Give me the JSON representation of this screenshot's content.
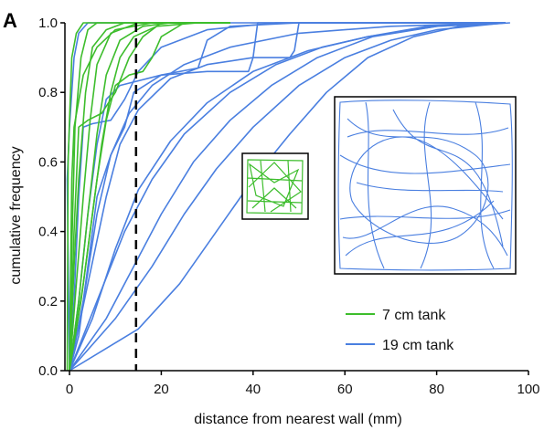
{
  "panel_label": "A",
  "chart_data": {
    "type": "line",
    "xlabel": "distance from nearest wall (mm)",
    "ylabel": "cumulative frequency",
    "xlim": [
      -1,
      100
    ],
    "ylim": [
      0,
      1
    ],
    "x_ticks": [
      0,
      20,
      40,
      60,
      80,
      100
    ],
    "y_ticks": [
      0.0,
      0.2,
      0.4,
      0.6,
      0.8,
      1.0
    ],
    "x_tick_labels": [
      "0",
      "20",
      "40",
      "60",
      "80",
      "100"
    ],
    "y_tick_labels": [
      "0.0",
      "0.2",
      "0.4",
      "0.6",
      "0.8",
      "1.0"
    ],
    "grid": false,
    "legend_position": "bottom-right",
    "threshold_line_x": 14.5,
    "colors": {
      "green": "#3dbd2c",
      "blue": "#4a7fe0"
    },
    "legend": [
      {
        "label": "7 cm tank",
        "color": "#3dbd2c"
      },
      {
        "label": "19 cm tank",
        "color": "#4a7fe0"
      }
    ],
    "series": [
      {
        "group": "green",
        "points": [
          [
            -0.5,
            0
          ],
          [
            -0.3,
            0.6
          ],
          [
            0,
            0.72
          ],
          [
            0.5,
            0.9
          ],
          [
            1.5,
            0.97
          ],
          [
            3,
            1
          ],
          [
            35,
            1
          ]
        ]
      },
      {
        "group": "green",
        "points": [
          [
            0,
            0
          ],
          [
            0.5,
            0.35
          ],
          [
            1.2,
            0.7
          ],
          [
            2.5,
            0.9
          ],
          [
            4,
            0.98
          ],
          [
            6,
            1
          ],
          [
            35,
            1
          ]
        ]
      },
      {
        "group": "green",
        "points": [
          [
            0,
            0
          ],
          [
            1,
            0.3
          ],
          [
            2,
            0.55
          ],
          [
            3.5,
            0.8
          ],
          [
            5,
            0.93
          ],
          [
            8,
            0.98
          ],
          [
            12,
            1
          ],
          [
            35,
            1
          ]
        ]
      },
      {
        "group": "green",
        "points": [
          [
            0,
            0
          ],
          [
            1.5,
            0.25
          ],
          [
            3,
            0.5
          ],
          [
            4.5,
            0.72
          ],
          [
            6,
            0.88
          ],
          [
            9,
            0.97
          ],
          [
            15,
            1
          ],
          [
            35,
            1
          ]
        ]
      },
      {
        "group": "green",
        "points": [
          [
            0,
            0
          ],
          [
            2,
            0.2
          ],
          [
            4,
            0.45
          ],
          [
            6,
            0.68
          ],
          [
            8,
            0.85
          ],
          [
            11,
            0.95
          ],
          [
            16,
            0.99
          ],
          [
            22,
            1
          ],
          [
            35,
            1
          ]
        ]
      },
      {
        "group": "green",
        "points": [
          [
            0,
            0
          ],
          [
            2.5,
            0.2
          ],
          [
            5,
            0.45
          ],
          [
            7,
            0.65
          ],
          [
            9,
            0.8
          ],
          [
            11,
            0.9
          ],
          [
            14,
            0.96
          ],
          [
            19,
            0.99
          ],
          [
            28,
            1
          ],
          [
            35,
            1
          ]
        ]
      },
      {
        "group": "green",
        "points": [
          [
            0,
            0
          ],
          [
            3,
            0.25
          ],
          [
            6,
            0.55
          ],
          [
            8,
            0.72
          ],
          [
            10,
            0.82
          ],
          [
            13,
            0.85
          ],
          [
            16,
            0.86
          ],
          [
            18,
            0.9
          ],
          [
            20,
            0.96
          ],
          [
            25,
            1
          ],
          [
            35,
            1
          ]
        ]
      },
      {
        "group": "green",
        "points": [
          [
            0,
            0
          ],
          [
            1,
            0.4
          ],
          [
            2,
            0.7
          ],
          [
            4,
            0.72
          ],
          [
            7,
            0.74
          ],
          [
            10,
            0.8
          ],
          [
            13,
            0.9
          ],
          [
            16,
            0.96
          ],
          [
            20,
            1
          ],
          [
            35,
            1
          ]
        ]
      },
      {
        "group": "green",
        "points": [
          [
            0,
            0
          ],
          [
            0.5,
            0.55
          ],
          [
            1,
            0.7
          ],
          [
            3,
            0.85
          ],
          [
            6,
            0.93
          ],
          [
            10,
            0.98
          ],
          [
            18,
            1
          ],
          [
            35,
            1
          ]
        ]
      },
      {
        "group": "blue",
        "points": [
          [
            0,
            0
          ],
          [
            -0.5,
            0.55
          ],
          [
            0,
            0.7
          ],
          [
            1,
            0.9
          ],
          [
            2,
            0.97
          ],
          [
            4,
            1
          ],
          [
            95,
            1
          ]
        ]
      },
      {
        "group": "blue",
        "points": [
          [
            0,
            0
          ],
          [
            1,
            0.2
          ],
          [
            2,
            0.5
          ],
          [
            3,
            0.7
          ],
          [
            5,
            0.71
          ],
          [
            9,
            0.72
          ],
          [
            12,
            0.78
          ],
          [
            15,
            0.86
          ],
          [
            20,
            0.93
          ],
          [
            30,
            0.98
          ],
          [
            45,
            1
          ],
          [
            95,
            1
          ]
        ]
      },
      {
        "group": "blue",
        "points": [
          [
            0,
            0
          ],
          [
            2,
            0.2
          ],
          [
            4,
            0.45
          ],
          [
            6,
            0.65
          ],
          [
            8,
            0.78
          ],
          [
            11,
            0.82
          ],
          [
            20,
            0.85
          ],
          [
            30,
            0.86
          ],
          [
            39,
            0.86
          ],
          [
            40,
            0.9
          ],
          [
            41,
            1
          ],
          [
            95,
            1
          ]
        ]
      },
      {
        "group": "blue",
        "points": [
          [
            0,
            0
          ],
          [
            4,
            0.25
          ],
          [
            8,
            0.5
          ],
          [
            11,
            0.65
          ],
          [
            15,
            0.75
          ],
          [
            22,
            0.84
          ],
          [
            30,
            0.88
          ],
          [
            40,
            0.9
          ],
          [
            48,
            0.9
          ],
          [
            49,
            0.92
          ],
          [
            50,
            1
          ],
          [
            95,
            1
          ]
        ]
      },
      {
        "group": "blue",
        "points": [
          [
            0,
            0
          ],
          [
            6,
            0.2
          ],
          [
            12,
            0.4
          ],
          [
            18,
            0.55
          ],
          [
            25,
            0.68
          ],
          [
            35,
            0.8
          ],
          [
            45,
            0.88
          ],
          [
            55,
            0.93
          ],
          [
            65,
            0.96
          ],
          [
            78,
            0.99
          ],
          [
            95,
            1
          ]
        ]
      },
      {
        "group": "blue",
        "points": [
          [
            0,
            0
          ],
          [
            10,
            0.15
          ],
          [
            18,
            0.3
          ],
          [
            25,
            0.45
          ],
          [
            32,
            0.58
          ],
          [
            40,
            0.7
          ],
          [
            50,
            0.82
          ],
          [
            60,
            0.9
          ],
          [
            70,
            0.95
          ],
          [
            80,
            0.98
          ],
          [
            95,
            1
          ]
        ]
      },
      {
        "group": "blue",
        "points": [
          [
            0,
            0
          ],
          [
            15,
            0.12
          ],
          [
            24,
            0.25
          ],
          [
            32,
            0.4
          ],
          [
            40,
            0.55
          ],
          [
            48,
            0.68
          ],
          [
            56,
            0.8
          ],
          [
            65,
            0.9
          ],
          [
            75,
            0.96
          ],
          [
            85,
            0.99
          ],
          [
            96,
            1
          ]
        ]
      },
      {
        "group": "blue",
        "points": [
          [
            0,
            0
          ],
          [
            8,
            0.15
          ],
          [
            14,
            0.3
          ],
          [
            20,
            0.45
          ],
          [
            27,
            0.6
          ],
          [
            35,
            0.72
          ],
          [
            44,
            0.82
          ],
          [
            54,
            0.9
          ],
          [
            66,
            0.96
          ],
          [
            80,
            0.99
          ],
          [
            95,
            1
          ]
        ]
      },
      {
        "group": "blue",
        "points": [
          [
            0,
            0
          ],
          [
            3,
            0.2
          ],
          [
            6,
            0.45
          ],
          [
            9,
            0.62
          ],
          [
            13,
            0.74
          ],
          [
            18,
            0.82
          ],
          [
            25,
            0.88
          ],
          [
            35,
            0.93
          ],
          [
            50,
            0.97
          ],
          [
            70,
            0.99
          ],
          [
            95,
            1
          ]
        ]
      },
      {
        "group": "blue",
        "points": [
          [
            0,
            0
          ],
          [
            5,
            0.15
          ],
          [
            10,
            0.35
          ],
          [
            15,
            0.52
          ],
          [
            22,
            0.66
          ],
          [
            30,
            0.77
          ],
          [
            40,
            0.86
          ],
          [
            52,
            0.92
          ],
          [
            65,
            0.96
          ],
          [
            80,
            0.99
          ],
          [
            95,
            1
          ]
        ]
      },
      {
        "group": "blue",
        "points": [
          [
            0,
            0
          ],
          [
            2,
            0.1
          ],
          [
            4,
            0.3
          ],
          [
            6,
            0.5
          ],
          [
            9,
            0.62
          ],
          [
            12,
            0.7
          ],
          [
            14,
            0.8
          ],
          [
            20,
            0.85
          ],
          [
            28,
            0.87
          ],
          [
            30,
            0.95
          ],
          [
            35,
            0.99
          ],
          [
            50,
            1
          ],
          [
            95,
            1
          ]
        ]
      }
    ]
  }
}
